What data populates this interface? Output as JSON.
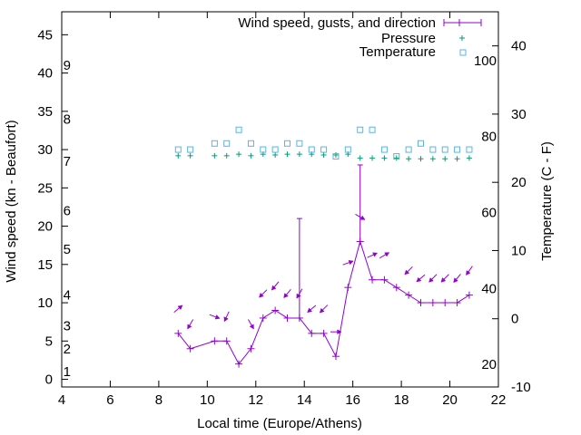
{
  "chart_data": {
    "type": "line",
    "title": "",
    "xlabel": "Local time (Europe/Athens)",
    "ylabel": "Wind speed (kn - Beaufort)",
    "y2label": "Temperature (C - F)",
    "xlim": [
      4,
      22
    ],
    "ylim": [
      -1,
      48
    ],
    "y2lim": [
      -10,
      45
    ],
    "x_ticks": [
      "4",
      "6",
      "8",
      "10",
      "12",
      "14",
      "16",
      "18",
      "20",
      "22"
    ],
    "y_ticks": [
      "0",
      "5",
      "10",
      "15",
      "20",
      "25",
      "30",
      "35",
      "40",
      "45"
    ],
    "y2_ticks": [
      "-10",
      "0",
      "10",
      "20",
      "30",
      "40"
    ],
    "beaufort_labels": [
      {
        "label": "1",
        "y": 1
      },
      {
        "label": "2",
        "y": 4
      },
      {
        "label": "3",
        "y": 7
      },
      {
        "label": "4",
        "y": 11
      },
      {
        "label": "5",
        "y": 17
      },
      {
        "label": "6",
        "y": 22
      },
      {
        "label": "7",
        "y": 28.5
      },
      {
        "label": "8",
        "y": 34
      },
      {
        "label": "9",
        "y": 41
      }
    ],
    "fahrenheit_labels": [
      {
        "label": "20",
        "y2": -6.7
      },
      {
        "label": "40",
        "y2": 4.4
      },
      {
        "label": "60",
        "y2": 15.6
      },
      {
        "label": "80",
        "y2": 26.7
      },
      {
        "label": "100",
        "y2": 37.8
      }
    ],
    "legend": {
      "wind": "Wind speed, gusts, and direction",
      "pressure": "Pressure",
      "temperature": "Temperature"
    },
    "colors": {
      "wind": "#9400d3",
      "pressure": "#009e73",
      "temperature": "#56b4e9"
    },
    "wind": {
      "x": [
        8.8,
        9.3,
        10.3,
        10.8,
        11.3,
        11.8,
        12.3,
        12.8,
        13.3,
        13.8,
        14.3,
        14.8,
        15.3,
        15.8,
        16.3,
        16.8,
        17.3,
        17.8,
        18.3,
        18.8,
        19.3,
        19.8,
        20.3,
        20.8
      ],
      "speed": [
        6,
        4,
        5,
        5,
        2,
        4,
        8,
        9,
        8,
        8,
        6,
        6,
        3,
        12,
        18,
        13,
        13,
        12,
        11,
        10,
        10,
        10,
        10,
        11
      ],
      "gusts": [
        null,
        null,
        null,
        null,
        null,
        null,
        null,
        null,
        null,
        21,
        null,
        null,
        null,
        null,
        28,
        null,
        null,
        null,
        null,
        null,
        null,
        null,
        null,
        null
      ],
      "direction_from_deg": [
        230,
        30,
        290,
        25,
        null,
        330,
        45,
        40,
        40,
        30,
        50,
        45,
        270,
        250,
        300,
        245,
        240,
        null,
        45,
        50,
        45,
        45,
        40,
        35
      ]
    },
    "pressure": {
      "x": [
        8.8,
        9.3,
        10.3,
        10.8,
        11.3,
        11.8,
        12.3,
        12.8,
        13.3,
        13.8,
        14.3,
        14.8,
        15.3,
        15.8,
        16.3,
        16.8,
        17.3,
        17.8,
        18.3,
        18.8,
        19.3,
        19.8,
        20.3,
        20.8
      ],
      "y": [
        29.2,
        29.2,
        29.2,
        29.2,
        29.4,
        29.2,
        29.4,
        29.3,
        29.4,
        29.4,
        29.4,
        29.3,
        29.3,
        29.4,
        28.9,
        28.9,
        28.9,
        28.9,
        28.8,
        28.8,
        28.8,
        28.8,
        28.8,
        28.9
      ]
    },
    "temperature": {
      "x": [
        8.8,
        9.3,
        10.3,
        10.8,
        11.3,
        11.8,
        12.3,
        12.8,
        13.3,
        13.8,
        14.3,
        14.8,
        15.3,
        15.8,
        16.3,
        16.8,
        17.3,
        17.8,
        18.3,
        18.8,
        19.3,
        19.8,
        20.3,
        20.8
      ],
      "y": [
        24.8,
        24.8,
        25.7,
        25.7,
        27.7,
        25.7,
        24.8,
        24.8,
        25.7,
        25.7,
        24.8,
        24.8,
        23.8,
        24.8,
        27.7,
        27.7,
        24.8,
        23.8,
        24.8,
        25.7,
        24.8,
        24.8,
        24.8,
        24.8
      ]
    }
  }
}
